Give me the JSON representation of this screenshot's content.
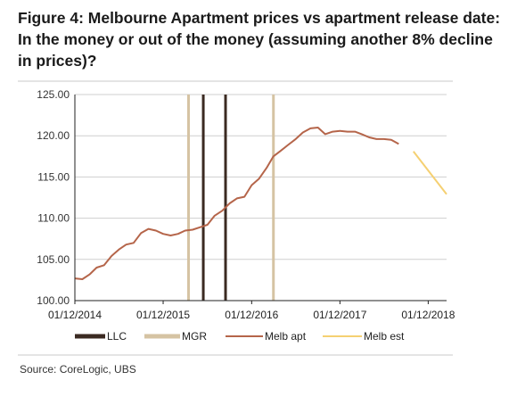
{
  "chart_data": {
    "type": "line",
    "title": "Figure 4: Melbourne Apartment prices vs apartment release date: In the money or out of the money (assuming another 8% decline in prices)?",
    "ylim": [
      100,
      125
    ],
    "yticks": [
      "125.00",
      "120.00",
      "115.00",
      "110.00",
      "105.00",
      "100.00"
    ],
    "ytick_values": [
      125,
      120,
      115,
      110,
      105,
      100
    ],
    "xlim": [
      "2014-12-01",
      "2019-02-15"
    ],
    "xticks": [
      {
        "label": "01/12/2014",
        "date": "2014-12-01"
      },
      {
        "label": "01/12/2015",
        "date": "2015-12-01"
      },
      {
        "label": "01/12/2016",
        "date": "2016-12-01"
      },
      {
        "label": "01/12/2017",
        "date": "2017-12-01"
      },
      {
        "label": "01/12/2018",
        "date": "2018-12-01"
      }
    ],
    "grid": true,
    "legend_position": "bottom",
    "vertical_markers": [
      {
        "series": "MGR",
        "date": "2016-03-15"
      },
      {
        "series": "LLC",
        "date": "2016-05-15"
      },
      {
        "series": "LLC",
        "date": "2016-08-15"
      },
      {
        "series": "MGR",
        "date": "2017-03-01"
      }
    ],
    "series": [
      {
        "name": "LLC",
        "kind": "vline",
        "color": "#3b2a22",
        "x": [],
        "y": []
      },
      {
        "name": "MGR",
        "kind": "vline",
        "color": "#d5c3a3",
        "x": [],
        "y": []
      },
      {
        "name": "Melb apt",
        "kind": "line",
        "color": "#b5654a",
        "x": [
          "2014-12-01",
          "2015-01-01",
          "2015-02-01",
          "2015-03-01",
          "2015-04-01",
          "2015-05-01",
          "2015-06-01",
          "2015-07-01",
          "2015-08-01",
          "2015-09-01",
          "2015-10-01",
          "2015-11-01",
          "2015-12-01",
          "2016-01-01",
          "2016-02-01",
          "2016-03-01",
          "2016-04-01",
          "2016-05-01",
          "2016-06-01",
          "2016-07-01",
          "2016-08-01",
          "2016-09-01",
          "2016-10-01",
          "2016-11-01",
          "2016-12-01",
          "2017-01-01",
          "2017-02-01",
          "2017-03-01",
          "2017-04-01",
          "2017-05-01",
          "2017-06-01",
          "2017-07-01",
          "2017-08-01",
          "2017-09-01",
          "2017-10-01",
          "2017-11-01",
          "2017-12-01",
          "2018-01-01",
          "2018-02-01",
          "2018-03-01",
          "2018-04-01",
          "2018-05-01",
          "2018-06-01",
          "2018-07-01",
          "2018-08-01",
          "2018-09-01",
          "2018-10-01"
        ],
        "y": [
          102.7,
          102.6,
          103.2,
          104.0,
          104.3,
          105.4,
          106.2,
          106.8,
          107.0,
          108.2,
          108.7,
          108.5,
          108.1,
          107.9,
          108.1,
          108.5,
          108.6,
          108.9,
          109.2,
          110.3,
          110.9,
          111.8,
          112.4,
          112.6,
          114.0,
          114.8,
          116.1,
          117.5,
          118.2,
          118.9,
          119.6,
          120.4,
          120.9,
          121.0,
          120.2,
          120.5,
          120.6,
          120.5,
          120.5,
          120.2,
          119.8,
          119.6,
          119.6,
          119.5,
          119.0,
          null,
          null
        ]
      },
      {
        "name": "Melb est",
        "kind": "line",
        "color": "#f5d072",
        "x": [
          "2018-10-01",
          "2019-02-15"
        ],
        "y": [
          118.1,
          112.9
        ]
      }
    ],
    "legend": [
      {
        "label": "LLC",
        "kind": "bar",
        "color": "#3b2a22"
      },
      {
        "label": "MGR",
        "kind": "bar",
        "color": "#d5c3a3"
      },
      {
        "label": "Melb apt",
        "kind": "line",
        "color": "#b5654a"
      },
      {
        "label": "Melb est",
        "kind": "line",
        "color": "#f5d072"
      }
    ]
  },
  "source": "Source:  CoreLogic, UBS"
}
